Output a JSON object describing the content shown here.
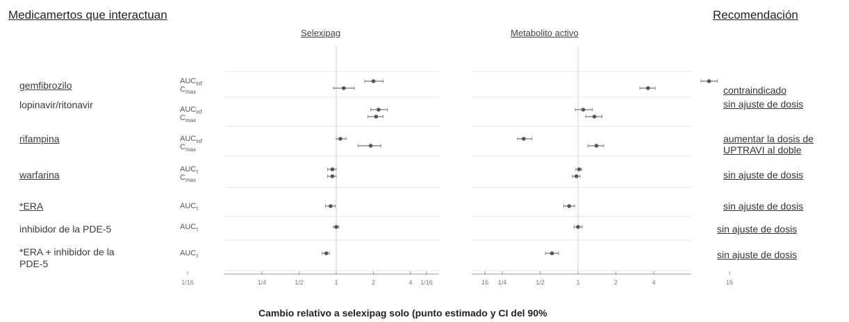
{
  "header": {
    "left": "Medicamertos que interactuan",
    "right": "Recomendación",
    "panel_left": "Selexipag",
    "panel_right": "Metabolito activo"
  },
  "rows": [
    {
      "drug": "gemfibrozilo",
      "params": [
        "AUCinf",
        "Cmax"
      ],
      "recommendation": [
        "contraindicado"
      ]
    },
    {
      "drug": "lopinavir/ritonavir",
      "params": [
        "AUCinf",
        "Cmax"
      ],
      "recommendation": [
        "sin ajuste de dosis"
      ]
    },
    {
      "drug": "rifampina",
      "params": [
        "AUCinf",
        "Cmax"
      ],
      "recommendation": [
        "aumentar la dosis de",
        "UPTRAVI al doble"
      ]
    },
    {
      "drug": "warfarina",
      "params": [
        "AUCτ",
        "Cmax"
      ],
      "recommendation": [
        "sin ajuste de dosis"
      ]
    },
    {
      "drug": "*ERA",
      "params": [
        "AUCτ"
      ],
      "recommendation": [
        "sin ajuste de dosis"
      ]
    },
    {
      "drug": "inhibidor de la PDE-5",
      "params": [
        "AUCτ"
      ],
      "recommendation": [
        "sin ajuste de dosis"
      ]
    },
    {
      "drug": "*ERA + inhibidor de la PDE-5",
      "params": [
        "AUCτ"
      ],
      "recommendation": [
        "sin ajuste de dosis"
      ]
    }
  ],
  "xlabel": "Cambio relativo a selexipag solo (punto estimado y CI del 90%",
  "tick_labels": [
    "1/16",
    "1/4",
    "1/2",
    "1",
    "2",
    "4",
    "16"
  ],
  "chart_data": {
    "type": "forest",
    "x_scale": "log2",
    "xlim": [
      0.0625,
      16
    ],
    "ticks": [
      0.0625,
      0.25,
      0.5,
      1,
      2,
      4,
      16
    ],
    "xlabel": "Cambio relativo a selexipag solo (punto estimado y CI del 90%",
    "panels": [
      {
        "title": "Selexipag",
        "points": [
          {
            "row": 0,
            "param": "AUCinf",
            "est": 2.0,
            "lo": 1.7,
            "hi": 2.4
          },
          {
            "row": 0,
            "param": "Cmax",
            "est": 1.15,
            "lo": 0.95,
            "hi": 1.4
          },
          {
            "row": 1,
            "param": "AUCinf",
            "est": 2.2,
            "lo": 1.9,
            "hi": 2.6
          },
          {
            "row": 1,
            "param": "Cmax",
            "est": 2.1,
            "lo": 1.8,
            "hi": 2.4
          },
          {
            "row": 2,
            "param": "AUCinf",
            "est": 1.08,
            "lo": 1.0,
            "hi": 1.2
          },
          {
            "row": 2,
            "param": "Cmax",
            "est": 1.9,
            "lo": 1.5,
            "hi": 2.3
          },
          {
            "row": 3,
            "param": "AUCτ",
            "est": 0.93,
            "lo": 0.85,
            "hi": 1.0
          },
          {
            "row": 3,
            "param": "Cmax",
            "est": 0.93,
            "lo": 0.85,
            "hi": 1.0
          },
          {
            "row": 4,
            "param": "AUCτ",
            "est": 0.9,
            "lo": 0.82,
            "hi": 0.98
          },
          {
            "row": 5,
            "param": "AUCτ",
            "est": 1.0,
            "lo": 0.95,
            "hi": 1.05
          },
          {
            "row": 6,
            "param": "AUCτ",
            "est": 0.83,
            "lo": 0.77,
            "hi": 0.88
          }
        ]
      },
      {
        "title": "Metabolito activo",
        "points": [
          {
            "row": 0,
            "param": "AUCinf",
            "est": 11.0,
            "lo": 9.5,
            "hi": 12.8
          },
          {
            "row": 0,
            "param": "Cmax",
            "est": 3.6,
            "lo": 3.1,
            "hi": 4.1
          },
          {
            "row": 1,
            "param": "AUCinf",
            "est": 1.1,
            "lo": 0.95,
            "hi": 1.3
          },
          {
            "row": 1,
            "param": "Cmax",
            "est": 1.35,
            "lo": 1.15,
            "hi": 1.55
          },
          {
            "row": 2,
            "param": "AUCinf",
            "est": 0.37,
            "lo": 0.33,
            "hi": 0.43
          },
          {
            "row": 2,
            "param": "Cmax",
            "est": 1.4,
            "lo": 1.2,
            "hi": 1.6
          },
          {
            "row": 3,
            "param": "AUCτ",
            "est": 1.02,
            "lo": 0.96,
            "hi": 1.07
          },
          {
            "row": 3,
            "param": "Cmax",
            "est": 0.97,
            "lo": 0.9,
            "hi": 1.04
          },
          {
            "row": 4,
            "param": "AUCτ",
            "est": 0.85,
            "lo": 0.77,
            "hi": 0.94
          },
          {
            "row": 5,
            "param": "AUCτ",
            "est": 1.0,
            "lo": 0.93,
            "hi": 1.08
          },
          {
            "row": 6,
            "param": "AUCτ",
            "est": 0.62,
            "lo": 0.55,
            "hi": 0.7
          }
        ]
      }
    ]
  }
}
